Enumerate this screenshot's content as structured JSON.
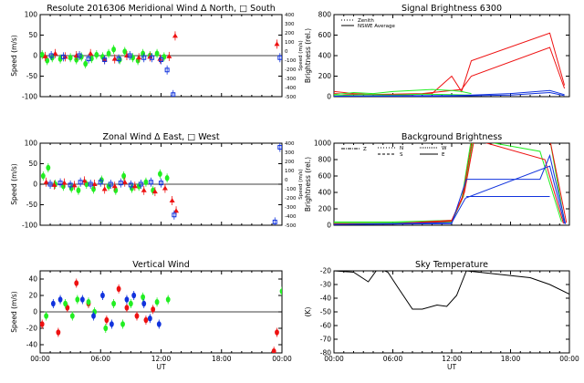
{
  "colors": {
    "red": "#ee1111",
    "green": "#22ee22",
    "blue": "#1133dd",
    "black": "#000000"
  },
  "chart_data": [
    {
      "id": "meridional",
      "type": "scatter",
      "title": "Resolute  2016306    Meridional Wind   Δ North, □ South",
      "ylabel": "Speed (m/s)",
      "y2label": "Speed (m/s)",
      "xlim": [
        0,
        24
      ],
      "ylim": [
        -100,
        100
      ],
      "yticks": [
        -100,
        -50,
        0,
        50,
        100
      ],
      "ytick_labels": [
        "-100",
        "-50",
        "0",
        "50",
        "100"
      ],
      "y2lim": [
        -500,
        400
      ],
      "y2ticks": [
        -500,
        -400,
        -300,
        -200,
        -100,
        0,
        100,
        200,
        300,
        400
      ],
      "y2tick_labels": [
        "-500",
        "-400",
        "-300",
        "-200",
        "-100",
        "0",
        "100",
        "200",
        "300",
        "400"
      ],
      "xticks": [
        0,
        6,
        12,
        18,
        24
      ],
      "xtick_labels": [
        "",
        "",
        "",
        "",
        ""
      ],
      "series": [
        {
          "name": "green",
          "color": "green",
          "x": [
            0.2,
            0.7,
            1.2,
            2.0,
            3.0,
            3.6,
            4.1,
            4.5,
            5.1,
            5.6,
            6.2,
            6.8,
            7.3,
            7.9,
            8.4,
            9.2,
            9.7,
            10.2,
            10.9,
            11.6,
            12.3
          ],
          "y": [
            2,
            -12,
            -5,
            -8,
            -5,
            -10,
            -3,
            -20,
            -7,
            2,
            -3,
            5,
            15,
            -10,
            10,
            -5,
            -12,
            5,
            0,
            5,
            -3
          ]
        },
        {
          "name": "red",
          "color": "red",
          "x": [
            0.5,
            1.5,
            2.5,
            3.6,
            5.0,
            6.4,
            7.4,
            8.6,
            9.8,
            10.9,
            11.9,
            12.8,
            13.4,
            23.5
          ],
          "y": [
            -2,
            5,
            -3,
            0,
            5,
            -10,
            -8,
            0,
            -5,
            -3,
            -8,
            -2,
            48,
            28
          ]
        },
        {
          "name": "blue",
          "color": "blue",
          "x": [
            1.1,
            2.3,
            3.9,
            4.8,
            6.4,
            7.8,
            8.9,
            10.3,
            11.1,
            12.0,
            12.6,
            13.2,
            23.8
          ],
          "y": [
            0,
            -3,
            0,
            -8,
            -10,
            -8,
            0,
            -5,
            -5,
            -10,
            -35,
            -95,
            -5
          ]
        }
      ]
    },
    {
      "id": "signal",
      "type": "line",
      "title": "Signal Brightness       6300",
      "ylabel": "Brightness (rel.)",
      "xlim": [
        0,
        24
      ],
      "ylim": [
        0,
        800
      ],
      "yticks": [
        0,
        200,
        400,
        600,
        800
      ],
      "ytick_labels": [
        "0",
        "200",
        "400",
        "600",
        "800"
      ],
      "xticks": [
        0,
        6,
        12,
        18,
        24
      ],
      "xtick_labels": [
        "",
        "",
        "",
        "",
        ""
      ],
      "legend": [
        "Zenith",
        "NSWE Average"
      ],
      "series": [
        {
          "name": "red-1",
          "color": "red",
          "x": [
            0,
            2,
            4,
            6,
            8,
            10,
            12,
            13,
            14,
            22,
            23.5
          ],
          "y": [
            50,
            30,
            20,
            15,
            20,
            30,
            200,
            50,
            350,
            620,
            110
          ]
        },
        {
          "name": "red-2",
          "color": "red",
          "x": [
            0,
            3,
            6,
            9,
            12,
            13,
            14,
            22,
            23.5
          ],
          "y": [
            30,
            20,
            25,
            30,
            60,
            70,
            200,
            480,
            80
          ]
        },
        {
          "name": "green-1",
          "color": "green",
          "x": [
            0,
            2,
            4,
            6,
            8,
            10,
            12,
            13,
            14
          ],
          "y": [
            20,
            40,
            30,
            50,
            60,
            70,
            60,
            50,
            30
          ]
        },
        {
          "name": "green-2",
          "color": "green",
          "x": [
            0,
            3,
            6,
            9,
            12,
            14
          ],
          "y": [
            10,
            20,
            15,
            25,
            20,
            15
          ]
        },
        {
          "name": "blue-1",
          "color": "blue",
          "x": [
            0,
            4,
            8,
            12,
            14,
            18,
            22,
            23.5
          ],
          "y": [
            5,
            8,
            10,
            12,
            15,
            30,
            60,
            20
          ]
        },
        {
          "name": "blue-2",
          "color": "blue",
          "x": [
            0,
            6,
            12,
            18,
            22,
            23.5
          ],
          "y": [
            2,
            3,
            5,
            15,
            40,
            10
          ]
        }
      ]
    },
    {
      "id": "zonal",
      "type": "scatter",
      "title": "Zonal Wind       Δ East, □ West",
      "ylabel": "Speed (m/s)",
      "y2label": "Speed (m/s)",
      "xlim": [
        0,
        24
      ],
      "ylim": [
        -100,
        100
      ],
      "yticks": [
        -100,
        -50,
        0,
        50,
        100
      ],
      "ytick_labels": [
        "-100",
        "-50",
        "0",
        "50",
        "100"
      ],
      "y2lim": [
        -500,
        400
      ],
      "y2ticks": [
        -500,
        -400,
        -300,
        -200,
        -100,
        0,
        100,
        200,
        300,
        400
      ],
      "y2tick_labels": [
        "-500",
        "-400",
        "-300",
        "-200",
        "-100",
        "0",
        "100",
        "200",
        "300",
        "400"
      ],
      "xticks": [
        0,
        6,
        12,
        18,
        24
      ],
      "xtick_labels": [
        "",
        "",
        "",
        "",
        ""
      ],
      "series": [
        {
          "name": "green",
          "color": "green",
          "x": [
            0.3,
            0.8,
            1.5,
            2.3,
            3.1,
            3.8,
            4.6,
            5.3,
            6.1,
            6.8,
            7.5,
            8.3,
            9.1,
            9.8,
            10.5,
            11.2,
            11.9,
            12.6
          ],
          "y": [
            20,
            40,
            0,
            -5,
            -10,
            -15,
            0,
            -12,
            10,
            -5,
            -15,
            20,
            -10,
            -5,
            5,
            -15,
            25,
            15
          ]
        },
        {
          "name": "red",
          "color": "red",
          "x": [
            0.6,
            1.4,
            2.4,
            3.4,
            4.4,
            5.4,
            6.4,
            7.4,
            8.4,
            9.4,
            10.3,
            11.4,
            12.4,
            13.1,
            13.5
          ],
          "y": [
            5,
            -2,
            3,
            -3,
            8,
            0,
            -12,
            -5,
            5,
            -5,
            -15,
            -18,
            -10,
            -40,
            -65
          ]
        },
        {
          "name": "blue",
          "color": "blue",
          "x": [
            1.0,
            2.0,
            3.0,
            4.0,
            5.0,
            6.0,
            7.0,
            8.0,
            9.0,
            10.0,
            11.0,
            12.0,
            13.3,
            23.3,
            23.8
          ],
          "y": [
            0,
            3,
            -2,
            5,
            0,
            5,
            0,
            3,
            -2,
            0,
            5,
            3,
            -75,
            -92,
            90
          ]
        }
      ]
    },
    {
      "id": "background",
      "type": "line",
      "title": "Background Brightness",
      "ylabel": "Brightness (rel.)",
      "xlim": [
        0,
        24
      ],
      "ylim": [
        0,
        1000
      ],
      "yticks": [
        0,
        200,
        400,
        600,
        800,
        1000
      ],
      "ytick_labels": [
        "0",
        "200",
        "400",
        "600",
        "800",
        "1000"
      ],
      "xticks": [
        0,
        6,
        12,
        18,
        24
      ],
      "xtick_labels": [
        "",
        "",
        "",
        "",
        ""
      ],
      "legend": [
        "Z",
        "N",
        "S",
        "W",
        "E"
      ],
      "series": [
        {
          "name": "green-1",
          "color": "green",
          "x": [
            0,
            6,
            12,
            13.2,
            14.2,
            22,
            23.5
          ],
          "y": [
            40,
            40,
            60,
            350,
            1050,
            1050,
            40
          ]
        },
        {
          "name": "green-2",
          "color": "green",
          "x": [
            0,
            6,
            12,
            13.0,
            14.0,
            21,
            23.2
          ],
          "y": [
            30,
            30,
            40,
            300,
            1050,
            900,
            40
          ]
        },
        {
          "name": "red-1",
          "color": "red",
          "x": [
            0,
            6,
            12,
            13.3,
            14.3,
            22,
            23.7
          ],
          "y": [
            20,
            20,
            60,
            400,
            1050,
            1050,
            30
          ]
        },
        {
          "name": "red-2",
          "color": "red",
          "x": [
            0,
            6,
            12,
            13.1,
            14.1,
            21.5,
            23.4
          ],
          "y": [
            15,
            15,
            50,
            330,
            1050,
            800,
            20
          ]
        },
        {
          "name": "blue-1",
          "color": "blue",
          "x": [
            0,
            12,
            13.4,
            22,
            23.5
          ],
          "y": [
            10,
            30,
            330,
            720,
            20
          ]
        },
        {
          "name": "blue-2",
          "color": "blue",
          "x": [
            0,
            12,
            13.5,
            21,
            22,
            23.6
          ],
          "y": [
            8,
            20,
            560,
            560,
            850,
            15
          ]
        },
        {
          "name": "blue-3",
          "color": "blue",
          "x": [
            13.5,
            18,
            22
          ],
          "y": [
            350,
            350,
            350
          ]
        }
      ]
    },
    {
      "id": "vertical",
      "type": "scatter",
      "title": "Vertical Wind",
      "ylabel": "Speed (m/s)",
      "xlabel": "UT",
      "xlim": [
        0,
        24
      ],
      "ylim": [
        -50,
        50
      ],
      "yticks": [
        -40,
        -20,
        0,
        20,
        40
      ],
      "ytick_labels": [
        "-40",
        "-20",
        "0",
        "20",
        "40"
      ],
      "xticks": [
        0,
        6,
        12,
        18,
        24
      ],
      "xtick_labels": [
        "00:00",
        "06:00",
        "12:00",
        "18:00",
        "00:00"
      ],
      "series": [
        {
          "name": "red",
          "color": "red",
          "x": [
            0.2,
            1.8,
            2.7,
            3.6,
            4.8,
            6.6,
            7.8,
            8.6,
            9.6,
            10.5,
            11.2,
            23.2,
            23.5
          ],
          "y": [
            -15,
            -25,
            5,
            35,
            10,
            -10,
            28,
            5,
            -5,
            -10,
            3,
            -48,
            -25
          ]
        },
        {
          "name": "green",
          "color": "green",
          "x": [
            0.6,
            2.5,
            3.2,
            3.7,
            4.8,
            5.4,
            6.5,
            7.3,
            8.2,
            9.0,
            10.2,
            11.6,
            12.7,
            24.0
          ],
          "y": [
            -5,
            10,
            -5,
            15,
            12,
            0,
            -20,
            10,
            -15,
            10,
            18,
            12,
            15,
            25
          ]
        },
        {
          "name": "blue",
          "color": "blue",
          "x": [
            1.3,
            2.0,
            4.2,
            5.3,
            6.2,
            7.1,
            8.6,
            9.3,
            10.3,
            10.9,
            11.8
          ],
          "y": [
            10,
            15,
            15,
            -5,
            20,
            -15,
            15,
            20,
            10,
            -8,
            -15
          ]
        }
      ]
    },
    {
      "id": "skytemp",
      "type": "line",
      "title": "Sky Temperature",
      "ylabel": "(K)",
      "xlabel": "UT",
      "xlim": [
        0,
        24
      ],
      "ylim": [
        -80,
        -20
      ],
      "yticks": [
        -80,
        -70,
        -60,
        -50,
        -40,
        -30,
        -20
      ],
      "ytick_labels": [
        "-80",
        "-70",
        "-60",
        "-50",
        "-40",
        "-30",
        "-20"
      ],
      "xticks": [
        0,
        6,
        12,
        18,
        24
      ],
      "xtick_labels": [
        "00:00",
        "06:00",
        "12:00",
        "18:00",
        "00:00"
      ],
      "series": [
        {
          "name": "sky-temperature",
          "color": "black",
          "x": [
            0,
            2,
            3.5,
            4.5,
            5.5,
            6.5,
            8,
            9,
            10.5,
            11.5,
            12.5,
            13.5,
            20,
            22,
            24
          ],
          "y": [
            -20,
            -21,
            -28,
            -18,
            -21,
            -32,
            -48,
            -48,
            -45,
            -46,
            -38,
            -20,
            -25,
            -30,
            -37
          ]
        }
      ]
    }
  ]
}
